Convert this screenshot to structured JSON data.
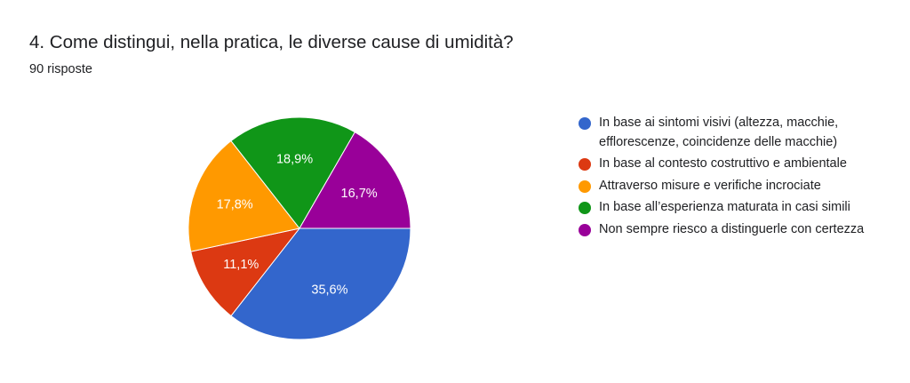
{
  "header": {
    "title": "4. Come distingui, nella pratica, le diverse cause di umidità?",
    "responses": "90 risposte"
  },
  "chart_data": {
    "type": "pie",
    "slices": [
      {
        "name": "In base ai sintomi visivi (altezza, macchie, efflorescenze, coincidenze delle macchie)",
        "value": 35.6,
        "label": "35,6%",
        "color": "#3366cc"
      },
      {
        "name": "In base al contesto costruttivo e ambientale",
        "value": 11.1,
        "label": "11,1%",
        "color": "#dc3912"
      },
      {
        "name": "Attraverso misure e verifiche incrociate",
        "value": 17.8,
        "label": "17,8%",
        "color": "#ff9900"
      },
      {
        "name": "In base all’esperienza maturata in casi simili",
        "value": 18.9,
        "label": "18,9%",
        "color": "#109618"
      },
      {
        "name": "Non sempre riesco a distinguerle con certezza",
        "value": 16.7,
        "label": "16,7%",
        "color": "#990099"
      }
    ],
    "legend_position": "right"
  }
}
